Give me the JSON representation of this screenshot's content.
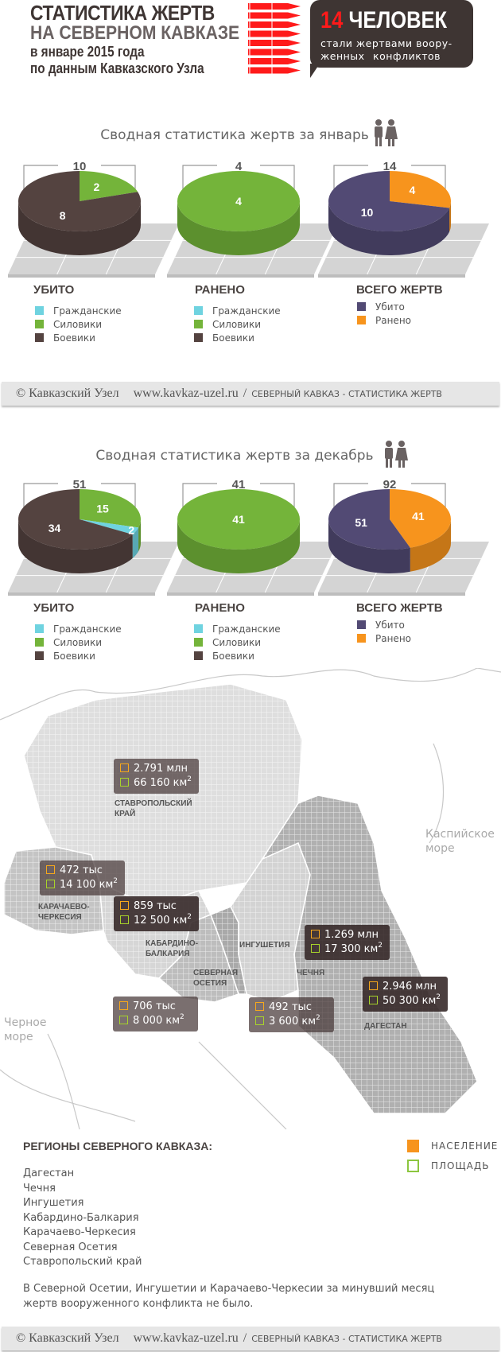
{
  "header": {
    "title_line1": "СТАТИСТИКА ЖЕРТВ",
    "title_line2": "НА СЕВЕРНОМ КАВКАЗЕ",
    "title_line3": "в январе 2015 года",
    "title_line4": "по данным Кавказского Узла",
    "bubble_number": "14",
    "bubble_word": "ЧЕЛОВЕК",
    "bubble_text1": "стали жертвами воору-",
    "bubble_text2": "женных конфликтов",
    "accent_color": "#ff1a1a"
  },
  "colors": {
    "civilians": "#6fd3e0",
    "security": "#74b43a",
    "militants": "#544340",
    "killed": "#524a74",
    "wounded": "#f7941d"
  },
  "legend_labels": {
    "civilians": "Гражданские",
    "security": "Силовики",
    "militants": "Боевики",
    "killed": "Убито",
    "wounded": "Ранено"
  },
  "sections": [
    {
      "title": "Сводная статистика жертв за январь",
      "icon": "people-icon"
    },
    {
      "title": "Сводная статистика жертв за декабрь",
      "icon": "people-icon"
    }
  ],
  "chart_data": [
    {
      "type": "pie",
      "title": "УБИТО",
      "total": "10",
      "categories": [
        "Силовики",
        "Гражданские",
        "Боевики"
      ],
      "values": [
        2,
        0,
        8
      ],
      "colors": [
        "#74b43a",
        "#6fd3e0",
        "#544340"
      ]
    },
    {
      "type": "pie",
      "title": "РАНЕНО",
      "total": "4",
      "categories": [
        "Силовики"
      ],
      "values": [
        4
      ],
      "colors": [
        "#74b43a"
      ]
    },
    {
      "type": "pie",
      "title": "ВСЕГО ЖЕРТВ",
      "total": "14",
      "categories": [
        "Ранено",
        "Убито"
      ],
      "values": [
        4,
        10
      ],
      "colors": [
        "#f7941d",
        "#524a74"
      ]
    },
    {
      "type": "pie",
      "title": "УБИТО",
      "total": "51",
      "categories": [
        "Силовики",
        "Гражданские",
        "Боевики"
      ],
      "values": [
        15,
        2,
        34
      ],
      "colors": [
        "#74b43a",
        "#6fd3e0",
        "#544340"
      ]
    },
    {
      "type": "pie",
      "title": "РАНЕНО",
      "total": "41",
      "categories": [
        "Силовики"
      ],
      "values": [
        41
      ],
      "colors": [
        "#74b43a"
      ]
    },
    {
      "type": "pie",
      "title": "ВСЕГО ЖЕРТВ",
      "total": "92",
      "categories": [
        "Ранено",
        "Убито"
      ],
      "values": [
        41,
        51
      ],
      "colors": [
        "#f7941d",
        "#524a74"
      ]
    }
  ],
  "footer": {
    "copyright": "© Кавказский Узел",
    "url": "www.kavkaz-uzel.ru",
    "separator": "/",
    "section": "СЕВЕРНЫЙ КАВКАЗ - СТАТИСТИКА ЖЕРТВ"
  },
  "map": {
    "seas": {
      "caspian1": "Каспийское",
      "caspian2": "море",
      "black1": "Черное",
      "black2": "море"
    },
    "regions": [
      {
        "name1": "СТАВРОПОЛЬСКИЙ",
        "name2": "КРАЙ",
        "population": "2.791 млн",
        "area": "66 160 км",
        "sup": "2"
      },
      {
        "name1": "КАРАЧАЕВО-",
        "name2": "ЧЕРКЕСИЯ",
        "population": "472 тыс",
        "area": "14 100 км",
        "sup": "2"
      },
      {
        "name1": "КАБАРДИНО-",
        "name2": "БАЛКАРИЯ",
        "population": "859 тыс",
        "area": "12 500 км",
        "sup": "2"
      },
      {
        "name1": "ИНГУШЕТИЯ",
        "name2": "",
        "population": "492 тыс",
        "area": "3 600 км",
        "sup": "2"
      },
      {
        "name1": "СЕВЕРНАЯ",
        "name2": "ОСЕТИЯ",
        "population": "706 тыс",
        "area": "8 000 км",
        "sup": "2"
      },
      {
        "name1": "ЧЕЧНЯ",
        "name2": "",
        "population": "1.269 млн",
        "area": "17 300 км",
        "sup": "2"
      },
      {
        "name1": "ДАГЕСТАН",
        "name2": "",
        "population": "2.946 млн",
        "area": "50 300 км",
        "sup": "2"
      }
    ]
  },
  "regions_block": {
    "title": "РЕГИОНЫ СЕВЕРНОГО КАВКАЗА:",
    "legend_population": "НАСЕЛЕНИЕ",
    "legend_area": "ПЛОЩАДЬ",
    "items": [
      "Дагестан",
      "Чечня",
      "Ингушетия",
      "Кабардино-Балкария",
      "Карачаево-Черкесия",
      "Северная Осетия",
      "Ставропольский край"
    ],
    "note": "В Северной Осетии, Ингушетии и Карачаево-Черкесии за минувший месяц жертв вооруженного конфликта не было."
  }
}
